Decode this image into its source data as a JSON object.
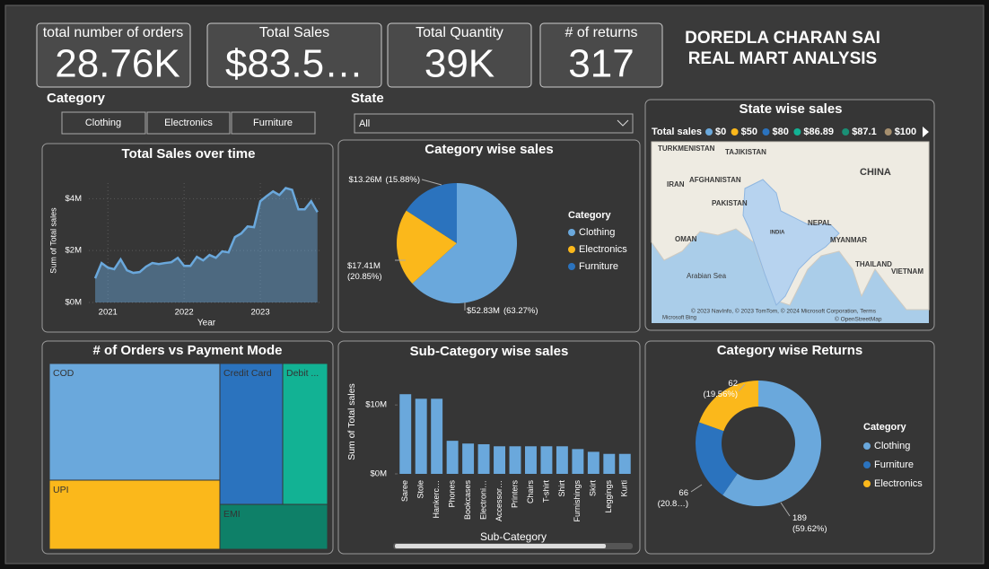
{
  "header": {
    "title_lines": [
      "DOREDLA CHARAN SAI",
      "REAL MART ANALYSIS"
    ]
  },
  "cards": [
    {
      "label": "total number of orders",
      "value": "28.76K"
    },
    {
      "label": "Total Sales",
      "value": "$83.5…"
    },
    {
      "label": "Total Quantity",
      "value": "39K"
    },
    {
      "label": "# of returns",
      "value": "317"
    }
  ],
  "slicers": {
    "category": {
      "label": "Category",
      "options": [
        "Clothing",
        "Electronics",
        "Furniture"
      ]
    },
    "state": {
      "label": "State",
      "value": "All"
    }
  },
  "map": {
    "title": "State wise sales",
    "legend_title": "Total sales",
    "legend": [
      {
        "label": "$0",
        "color": "#6aa8dc"
      },
      {
        "label": "$50",
        "color": "#fbb81b"
      },
      {
        "label": "$80",
        "color": "#2b73be"
      },
      {
        "label": "$86.89",
        "color": "#12b294"
      },
      {
        "label": "$87.1",
        "color": "#1a8f75"
      },
      {
        "label": "$100",
        "color": "#a68f6e"
      }
    ],
    "labels": [
      "TURKMENISTAN",
      "TAJIKISTAN",
      "IRAN",
      "AFGHANISTAN",
      "CHINA",
      "PAKISTAN",
      "NEPAL",
      "INDIA",
      "OMAN",
      "MYANMAR",
      "THAILAND",
      "VIETNAM",
      "Arabian Sea"
    ],
    "credits": [
      "© 2023 NavInfo, © 2023 TomTom, © 2024 Microsoft Corporation, Terms",
      "Microsoft Bing",
      "© OpenStreetMap"
    ]
  },
  "chart_data": [
    {
      "type": "area",
      "title": "Total Sales over time",
      "x_label": "Year",
      "y_label": "Sum of Total sales",
      "color": "#6aa8dc",
      "x": [
        2020.833,
        2020.917,
        2021,
        2021.083,
        2021.167,
        2021.25,
        2021.333,
        2021.417,
        2021.5,
        2021.583,
        2021.667,
        2021.75,
        2021.833,
        2021.917,
        2022,
        2022.083,
        2022.167,
        2022.25,
        2022.333,
        2022.417,
        2022.5,
        2022.583,
        2022.667,
        2022.75,
        2022.833,
        2022.917,
        2023,
        2023.083,
        2023.167,
        2023.25,
        2023.333,
        2023.417,
        2023.5,
        2023.583,
        2023.667,
        2023.75
      ],
      "values": [
        930000,
        1520000,
        1340000,
        1280000,
        1660000,
        1240000,
        1140000,
        1170000,
        1380000,
        1520000,
        1480000,
        1520000,
        1550000,
        1720000,
        1410000,
        1410000,
        1760000,
        1620000,
        1830000,
        1720000,
        1970000,
        1930000,
        2520000,
        2660000,
        2930000,
        2900000,
        3900000,
        4100000,
        4280000,
        4140000,
        4410000,
        4340000,
        3590000,
        3590000,
        3900000,
        3480000
      ],
      "xlim": [
        2020.75,
        2023.8
      ],
      "xticks": [
        2021,
        2022,
        2023
      ],
      "ylim": [
        0,
        4600000
      ],
      "yticks": [
        {
          "value": 0,
          "label": "$0M"
        },
        {
          "value": 2000000,
          "label": "$2M"
        },
        {
          "value": 4000000,
          "label": "$4M"
        }
      ],
      "grid": true
    },
    {
      "type": "pie",
      "title": "Category wise sales",
      "legend_title": "Category",
      "categories": [
        "Clothing",
        "Electronics",
        "Furniture"
      ],
      "values": [
        52830000,
        17410000,
        13260000
      ],
      "value_labels": [
        "$52.83M",
        "$17.41M",
        "$13.26M"
      ],
      "percent_labels": [
        "(63.27%)",
        "(20.85%)",
        "(15.88%)"
      ],
      "colors": [
        "#6aa8dc",
        "#fbb81b",
        "#2b73be"
      ]
    },
    {
      "type": "treemap",
      "title": "# of Orders vs Payment Mode",
      "categories": [
        "COD",
        "UPI",
        "Credit Card",
        "Debit ...",
        "EMI"
      ],
      "values": [
        11070,
        6557,
        4926,
        3518,
        2689
      ],
      "colors": [
        "#6aa8dc",
        "#fbb81b",
        "#2b73be",
        "#12b294",
        "#0e8068"
      ]
    },
    {
      "type": "bar",
      "title": "Sub-Category wise sales",
      "x_label": "Sub-Category",
      "y_label": "Sum of Total sales",
      "color": "#6aa8dc",
      "categories": [
        "Saree",
        "Stole",
        "Hankerc…",
        "Phones",
        "Bookcases",
        "Electroni…",
        "Accessor…",
        "Printers",
        "Chairs",
        "T-shirt",
        "Shirt",
        "Furnishings",
        "Skirt",
        "Leggings",
        "Kurti"
      ],
      "values": [
        11560000,
        10900000,
        10900000,
        4800000,
        4400000,
        4300000,
        4000000,
        4000000,
        4000000,
        4000000,
        4000000,
        3600000,
        3200000,
        2900000,
        2900000
      ],
      "ylim": [
        0,
        12500000
      ],
      "yticks": [
        {
          "value": 0,
          "label": "$0M"
        },
        {
          "value": 10000000,
          "label": "$10M"
        }
      ]
    },
    {
      "type": "donut",
      "title": "Category wise Returns",
      "legend_title": "Category",
      "categories": [
        "Clothing",
        "Furniture",
        "Electronics"
      ],
      "values": [
        189,
        66,
        62
      ],
      "percent_labels": [
        "(59.62%)",
        "(20.8…)",
        "(19.56%)"
      ],
      "colors": [
        "#6aa8dc",
        "#2b73be",
        "#fbb81b"
      ]
    }
  ]
}
